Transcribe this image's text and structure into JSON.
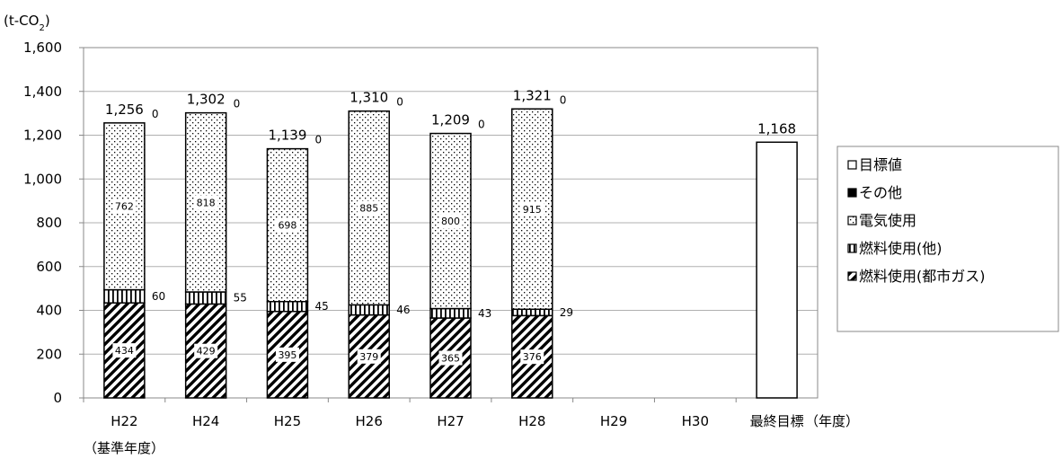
{
  "chart_data": {
    "type": "bar",
    "stacked": true,
    "y_unit_prefix": "(t-CO",
    "y_unit_sub": "2",
    "y_unit_suffix": ")",
    "x_unit": "（年度）",
    "base_year_note": "（基準年度）",
    "ylim": [
      0,
      1600
    ],
    "y_ticks": [
      0,
      200,
      400,
      600,
      800,
      1000,
      1200,
      1400,
      1600
    ],
    "y_tick_labels": [
      "0",
      "200",
      "400",
      "600",
      "800",
      "1,000",
      "1,200",
      "1,400",
      "1,600"
    ],
    "grid": true,
    "legend_position": "right",
    "categories": [
      "H22",
      "H24",
      "H25",
      "H26",
      "H27",
      "H28",
      "H29",
      "H30",
      "最終目標"
    ],
    "series": [
      {
        "name": "燃料使用(都市ガス)",
        "pattern": "diagonal-hatch",
        "values": [
          434,
          429,
          395,
          379,
          365,
          376,
          null,
          null,
          null
        ],
        "labels": [
          "434",
          "429",
          "395",
          "379",
          "365",
          "376",
          "",
          "",
          ""
        ]
      },
      {
        "name": "燃料使用(他)",
        "pattern": "vertical-lines",
        "values": [
          60,
          55,
          45,
          46,
          43,
          29,
          null,
          null,
          null
        ],
        "labels": [
          "60",
          "55",
          "45",
          "46",
          "43",
          "29",
          "",
          "",
          ""
        ]
      },
      {
        "name": "電気使用",
        "pattern": "dots",
        "values": [
          762,
          818,
          698,
          885,
          800,
          915,
          null,
          null,
          null
        ],
        "labels": [
          "762",
          "818",
          "698",
          "885",
          "800",
          "915",
          "",
          "",
          ""
        ]
      },
      {
        "name": "その他",
        "pattern": "solid-black",
        "values": [
          0,
          0,
          0,
          0,
          0,
          0,
          null,
          null,
          null
        ],
        "labels": [
          "0",
          "0",
          "0",
          "0",
          "0",
          "0",
          "",
          "",
          ""
        ]
      },
      {
        "name": "目標値",
        "pattern": "white",
        "values": [
          null,
          null,
          null,
          null,
          null,
          null,
          null,
          null,
          1168
        ],
        "labels": [
          "",
          "",
          "",
          "",
          "",
          "",
          "",
          "",
          ""
        ]
      }
    ],
    "totals": [
      1256,
      1302,
      1139,
      1310,
      1209,
      1321,
      null,
      null,
      1168
    ],
    "total_labels": [
      "1,256",
      "1,302",
      "1,139",
      "1,310",
      "1,209",
      "1,321",
      "",
      "",
      "1,168"
    ],
    "legend_order": [
      "目標値",
      "その他",
      "電気使用",
      "燃料使用(他)",
      "燃料使用(都市ガス)"
    ]
  }
}
